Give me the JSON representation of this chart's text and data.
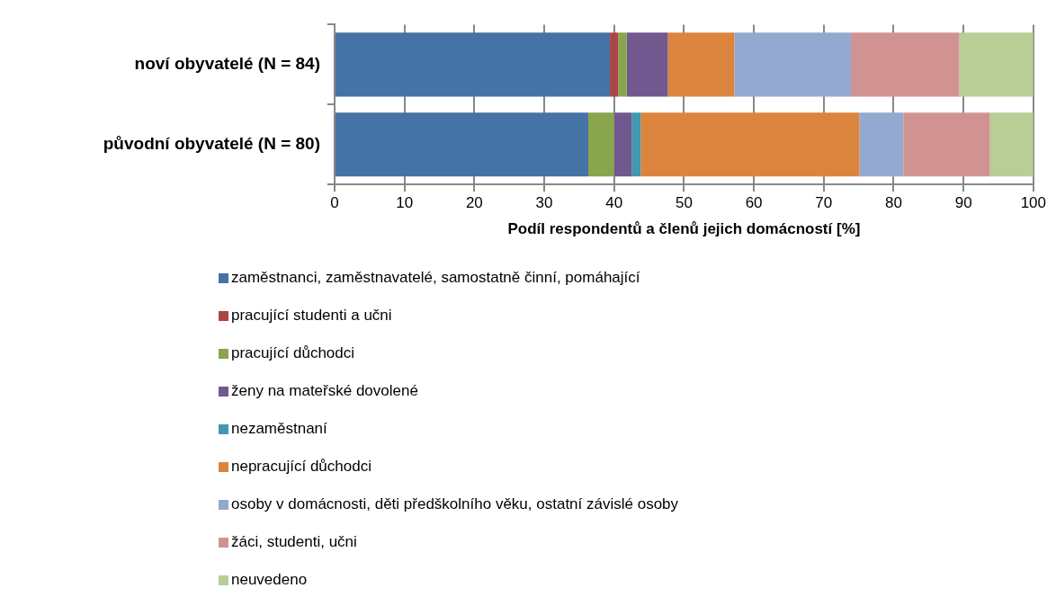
{
  "chart_data": {
    "type": "bar",
    "orientation": "horizontal",
    "stacked": true,
    "xlabel": "Podíl respondentů a členů jejich domácností [%]",
    "categories": [
      "noví obyvatelé (N = 84)",
      "původní obyvatelé (N = 80)"
    ],
    "xlim": [
      0,
      100
    ],
    "xticks": [
      0,
      10,
      20,
      30,
      40,
      50,
      60,
      70,
      80,
      90,
      100
    ],
    "grid": "x",
    "legend": "bottom",
    "series": [
      {
        "name": "zaměstnanci, zaměstnavatelé, samostatně činní, pomáhající",
        "color": "#4572a7",
        "values": [
          39.4,
          36.3
        ]
      },
      {
        "name": "pracující studenti a učni",
        "color": "#aa4643",
        "values": [
          1.2,
          0
        ]
      },
      {
        "name": "pracující důchodci",
        "color": "#89a54e",
        "values": [
          1.2,
          3.7
        ]
      },
      {
        "name": "ženy na mateřské dovolené",
        "color": "#71588f",
        "values": [
          5.9,
          2.5
        ]
      },
      {
        "name": "nezaměstnaní",
        "color": "#4198af",
        "values": [
          0,
          1.3
        ]
      },
      {
        "name": "nepracující důchodci",
        "color": "#db843d",
        "values": [
          9.5,
          31.3
        ]
      },
      {
        "name": "osoby v domácnosti, děti předškolního věku, ostatní závislé osoby",
        "color": "#93a9cf",
        "values": [
          16.7,
          6.3
        ]
      },
      {
        "name": "žáci, studenti, učni",
        "color": "#d19392",
        "values": [
          15.5,
          12.4
        ]
      },
      {
        "name": "neuvedeno",
        "color": "#b9cd96",
        "values": [
          10.6,
          6.2
        ]
      }
    ]
  }
}
